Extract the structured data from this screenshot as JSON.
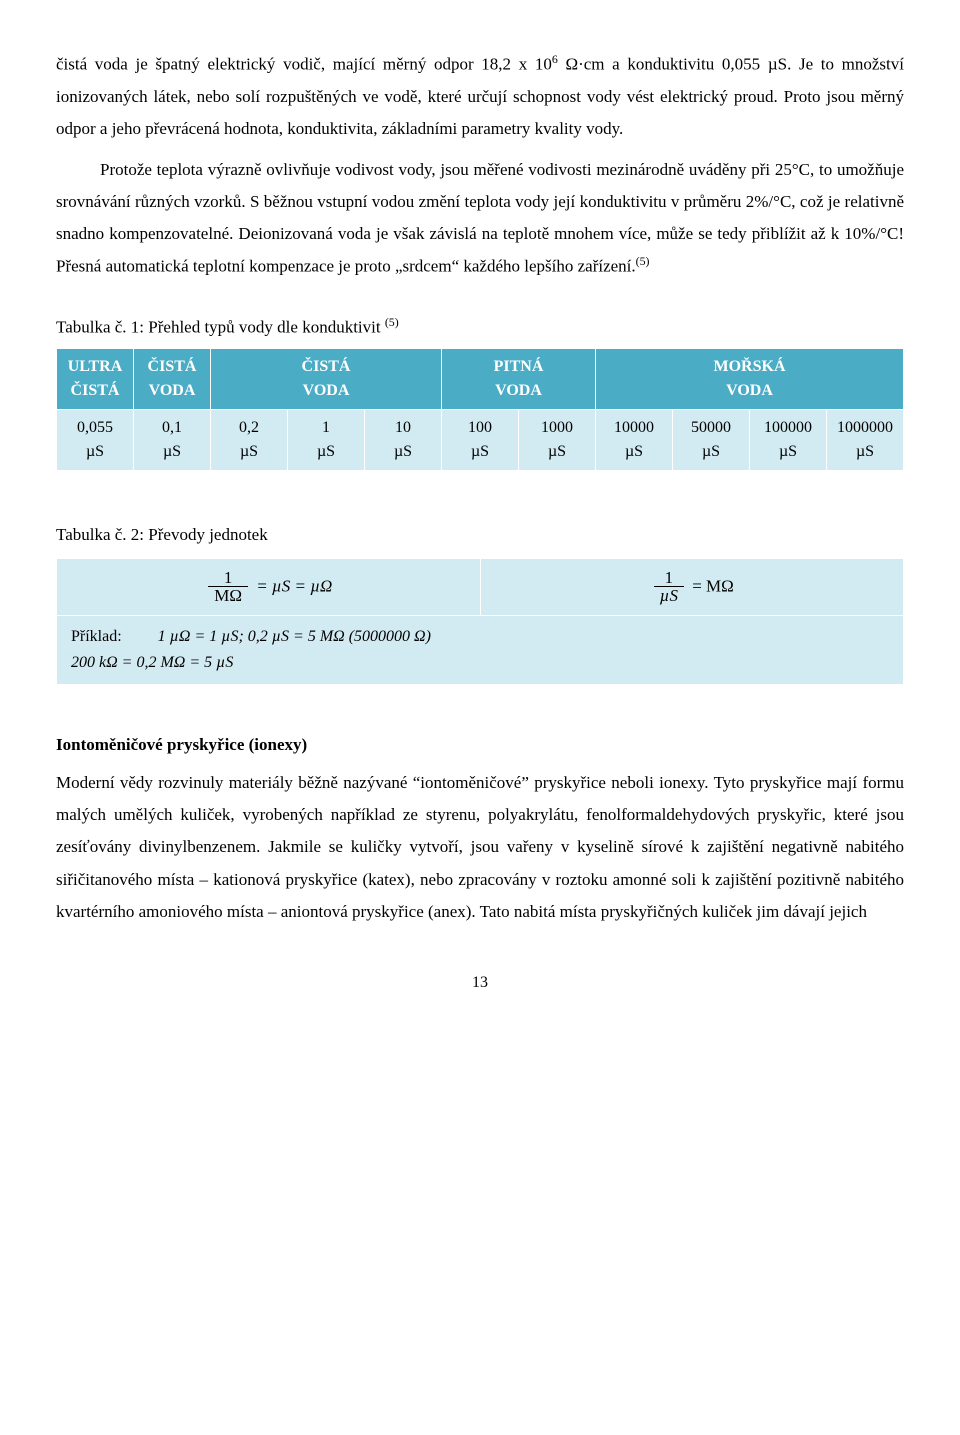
{
  "para1": "čistá voda je špatný elektrický vodič, mající měrný odpor 18,2 x 10",
  "para1_sup": "6",
  "para1_after": " Ω·cm a konduktivitu 0,055 µS. Je to množství ionizovaných látek, nebo solí rozpuštěných ve vodě, které určují schopnost vody vést elektrický proud. Proto jsou měrný odpor a jeho převrácená hodnota, konduktivita, základními parametry kvality vody.",
  "para2": "Protože teplota výrazně ovlivňuje vodivost vody, jsou měřené vodivosti mezinárodně uváděny při 25°C, to umožňuje srovnávání různých vzorků. S běžnou vstupní vodou změní teplota vody její konduktivitu v průměru 2%/°C, což je relativně snadno kompenzovatelné. Deionizovaná voda je však závislá na teplotě mnohem více, může se tedy přiblížit až k 10%/°C! Přesná automatická teplotní kompenzace je proto „srdcem“ každého lepšího zařízení.",
  "para2_ref": "(5)",
  "table1_caption_a": "Tabulka č. 1: Přehled typů vody dle konduktivit ",
  "table1_caption_ref": "(5)",
  "table1": {
    "headers": [
      "ULTRA ČISTÁ",
      "ČISTÁ VODA",
      "ČISTÁ VODA",
      "PITNÁ VODA",
      "MOŘSKÁ VODA"
    ],
    "colspans": [
      1,
      1,
      3,
      2,
      4
    ],
    "cells": [
      [
        "0,055",
        "µS"
      ],
      [
        "0,1",
        "µS"
      ],
      [
        "0,2",
        "µS"
      ],
      [
        "1",
        "µS"
      ],
      [
        "10",
        "µS"
      ],
      [
        "100",
        "µS"
      ],
      [
        "1000",
        "µS"
      ],
      [
        "10000",
        "µS"
      ],
      [
        "50000",
        "µS"
      ],
      [
        "100000",
        "µS"
      ],
      [
        "1000000",
        "µS"
      ]
    ],
    "header_bg": "#4bacc6",
    "header_fg": "#ffffff",
    "body_bg": "#d2eaf1",
    "border_color": "#ffffff"
  },
  "table2_caption": "Tabulka č. 2: Převody jednotek",
  "table2": {
    "formula1_num": "1",
    "formula1_den": "MΩ",
    "formula1_rhs": " =  µS =  µΩ",
    "formula2_num": "1",
    "formula2_den": "µS",
    "formula2_rhs": " = MΩ",
    "example_label": "Příklad:",
    "example_line1": "1 µΩ = 1 µS; 0,2 µS = 5 MΩ (5000000 Ω)",
    "example_line2": "200 kΩ = 0,2 MΩ = 5 µS",
    "body_bg": "#d2eaf1"
  },
  "section_heading": "Iontoměničové pryskyřice (ionexy)",
  "para3": "Moderní vědy rozvinuly materiály běžně nazývané “iontoměničové” pryskyřice neboli ionexy. Tyto pryskyřice mají formu malých umělých kuliček, vyrobených například ze styrenu, polyakrylátu, fenolformaldehydových pryskyřic, které jsou zesíťovány divinylbenzenem. Jakmile se kuličky vytvoří, jsou vařeny v kyselině sírové k zajištění negativně nabitého siřičitanového místa – kationová pryskyřice (katex), nebo zpracovány v roztoku amonné soli k zajištění pozitivně nabitého kvartérního amoniového místa – aniontová pryskyřice (anex). Tato nabitá místa pryskyřičných kuliček jim dávají jejich",
  "page_number": "13"
}
